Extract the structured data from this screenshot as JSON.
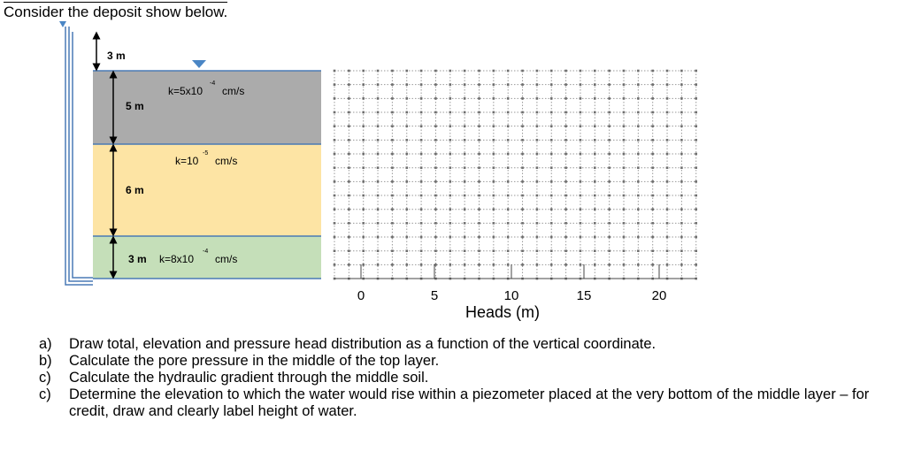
{
  "intro": "Consider the deposit show below.",
  "colors": {
    "layer_top": "#ababab",
    "layer_middle": "#fde4a4",
    "layer_bottom": "#c5dfb9",
    "water_marker": "#4a86c5",
    "layer_line": "#4a7ab5",
    "grid_line": "#9a9a9a",
    "grid_point": "#6e6e6e"
  },
  "diagram": {
    "water_depth": "3 m",
    "layers": [
      {
        "thickness": "5 m",
        "k_base": "k=5x10",
        "k_exp": "-4",
        "k_unit": "cm/s"
      },
      {
        "thickness": "6 m",
        "k_base": "k=10",
        "k_exp": "-5",
        "k_unit": "cm/s"
      },
      {
        "thickness": "3 m",
        "k_base": "k=8x10",
        "k_exp": "-4",
        "k_unit": "cm/s"
      }
    ]
  },
  "heads_axis": {
    "label": "Heads (m)",
    "ticks": [
      "0",
      "5",
      "10",
      "15",
      "20"
    ]
  },
  "questions": [
    {
      "label": "a)",
      "text": "Draw total, elevation and pressure head distribution as a function of the vertical coordinate."
    },
    {
      "label": "b)",
      "text": "Calculate the pore pressure in the middle of the top layer."
    },
    {
      "label": "c)",
      "text": "Calculate the hydraulic gradient through the middle soil."
    },
    {
      "label": "c)",
      "text": "Determine the elevation to which the water would rise within a piezometer placed at the very bottom of the middle layer – for credit, draw and clearly label height of water."
    }
  ]
}
